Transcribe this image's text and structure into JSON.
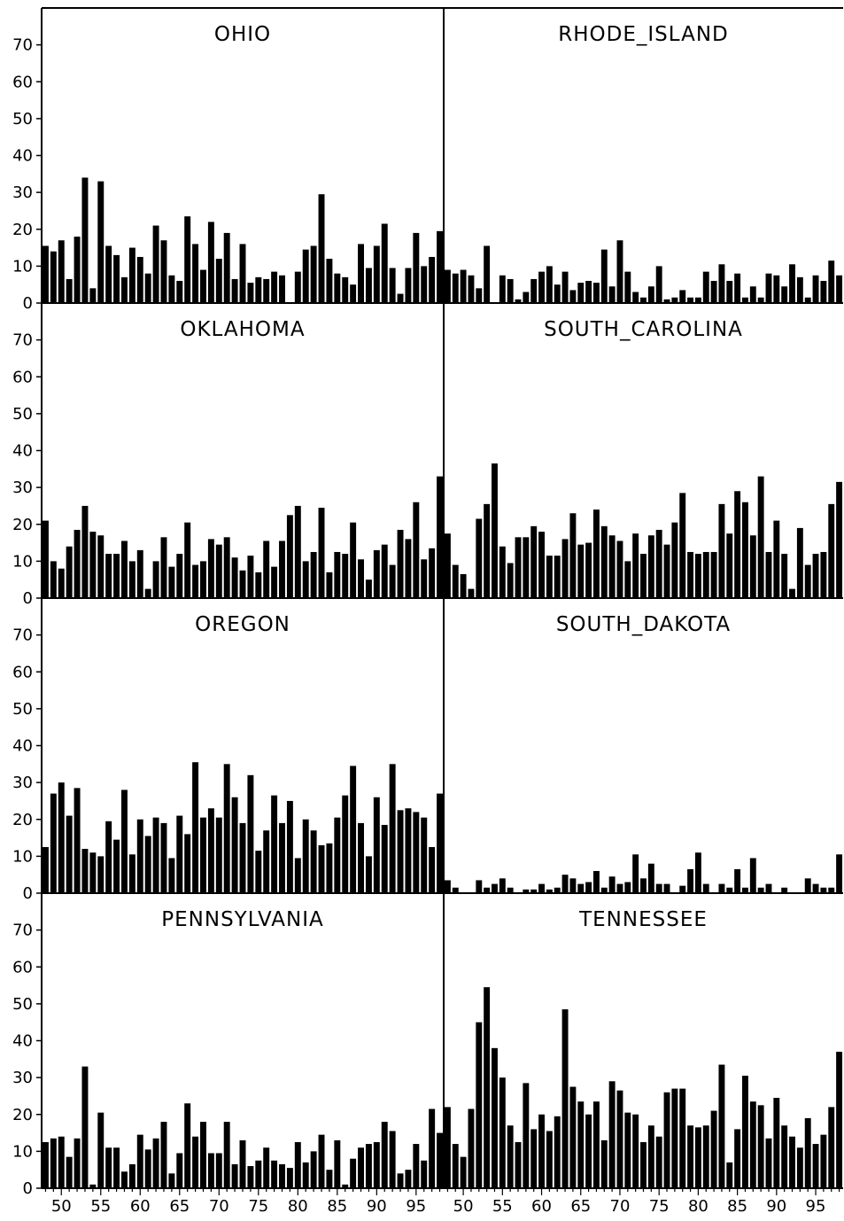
{
  "figure": {
    "layout": {
      "rows": 4,
      "columns": 2
    },
    "y_axis_tick_labels": [
      "0",
      "10",
      "20",
      "30",
      "40",
      "50",
      "60",
      "70"
    ],
    "x_axis_tick_labels": [
      "50",
      "55",
      "60",
      "65",
      "70",
      "75",
      "80",
      "85",
      "90",
      "95"
    ],
    "bar_color": "#000000"
  },
  "chart_data": [
    {
      "type": "bar",
      "title": "OHIO",
      "xlabel": "",
      "ylabel": "",
      "x": [
        1948,
        1949,
        1950,
        1951,
        1952,
        1953,
        1954,
        1955,
        1956,
        1957,
        1958,
        1959,
        1960,
        1961,
        1962,
        1963,
        1964,
        1965,
        1966,
        1967,
        1968,
        1969,
        1970,
        1971,
        1972,
        1973,
        1974,
        1975,
        1976,
        1977,
        1978,
        1979,
        1980,
        1981,
        1982,
        1983,
        1984,
        1985,
        1986,
        1987,
        1988,
        1989,
        1990,
        1991,
        1992,
        1993,
        1994,
        1995,
        1996,
        1997,
        1998
      ],
      "values": [
        15.5,
        14,
        17,
        6.5,
        18,
        34,
        4,
        33,
        15.5,
        13,
        7,
        15,
        12.5,
        8,
        21,
        17,
        7.5,
        6,
        23.5,
        16,
        9,
        22,
        12,
        19,
        6.5,
        16,
        5.5,
        7,
        6.5,
        8.5,
        7.5,
        0,
        8.5,
        14.5,
        15.5,
        29.5,
        12,
        8,
        7,
        5,
        16,
        9.5,
        15.5,
        21.5,
        9.5,
        2.5,
        9.5,
        19,
        10,
        12.5,
        19.5
      ],
      "ylim": [
        0,
        80
      ],
      "xlim": [
        1947.5,
        1998.5
      ]
    },
    {
      "type": "bar",
      "title": "RHODE_ISLAND",
      "xlabel": "",
      "ylabel": "",
      "x": [
        1948,
        1949,
        1950,
        1951,
        1952,
        1953,
        1954,
        1955,
        1956,
        1957,
        1958,
        1959,
        1960,
        1961,
        1962,
        1963,
        1964,
        1965,
        1966,
        1967,
        1968,
        1969,
        1970,
        1971,
        1972,
        1973,
        1974,
        1975,
        1976,
        1977,
        1978,
        1979,
        1980,
        1981,
        1982,
        1983,
        1984,
        1985,
        1986,
        1987,
        1988,
        1989,
        1990,
        1991,
        1992,
        1993,
        1994,
        1995,
        1996,
        1997,
        1998
      ],
      "values": [
        9,
        8,
        9,
        7.5,
        4,
        15.5,
        0,
        7.5,
        6.5,
        1,
        3,
        6.5,
        8.5,
        10,
        5,
        8.5,
        3.5,
        5.5,
        6,
        5.5,
        14.5,
        4.5,
        17,
        8.5,
        3,
        1.5,
        4.5,
        10,
        1,
        1.5,
        3.5,
        1.5,
        1.5,
        8.5,
        6,
        10.5,
        6,
        8,
        1.5,
        4.5,
        1.5,
        8,
        7.5,
        4.5,
        10.5,
        7,
        1.5,
        7.5,
        6,
        11.5,
        7.5
      ],
      "ylim": [
        0,
        80
      ],
      "xlim": [
        1947.5,
        1998.5
      ]
    },
    {
      "type": "bar",
      "title": "OKLAHOMA",
      "xlabel": "",
      "ylabel": "",
      "x": [
        1948,
        1949,
        1950,
        1951,
        1952,
        1953,
        1954,
        1955,
        1956,
        1957,
        1958,
        1959,
        1960,
        1961,
        1962,
        1963,
        1964,
        1965,
        1966,
        1967,
        1968,
        1969,
        1970,
        1971,
        1972,
        1973,
        1974,
        1975,
        1976,
        1977,
        1978,
        1979,
        1980,
        1981,
        1982,
        1983,
        1984,
        1985,
        1986,
        1987,
        1988,
        1989,
        1990,
        1991,
        1992,
        1993,
        1994,
        1995,
        1996,
        1997,
        1998
      ],
      "values": [
        21,
        10,
        8,
        14,
        18.5,
        25,
        18,
        17,
        12,
        12,
        15.5,
        10,
        13,
        2.5,
        10,
        16.5,
        8.5,
        12,
        20.5,
        9,
        10,
        16,
        14.5,
        16.5,
        11,
        7.5,
        11.5,
        7,
        15.5,
        8.5,
        15.5,
        22.5,
        25,
        10,
        12.5,
        24.5,
        7,
        12.5,
        12,
        20.5,
        10.5,
        5,
        13,
        14.5,
        9,
        18.5,
        16,
        26,
        10.5,
        13.5,
        33
      ],
      "ylim": [
        0,
        80
      ],
      "xlim": [
        1947.5,
        1998.5
      ]
    },
    {
      "type": "bar",
      "title": "SOUTH_CAROLINA",
      "xlabel": "",
      "ylabel": "",
      "x": [
        1948,
        1949,
        1950,
        1951,
        1952,
        1953,
        1954,
        1955,
        1956,
        1957,
        1958,
        1959,
        1960,
        1961,
        1962,
        1963,
        1964,
        1965,
        1966,
        1967,
        1968,
        1969,
        1970,
        1971,
        1972,
        1973,
        1974,
        1975,
        1976,
        1977,
        1978,
        1979,
        1980,
        1981,
        1982,
        1983,
        1984,
        1985,
        1986,
        1987,
        1988,
        1989,
        1990,
        1991,
        1992,
        1993,
        1994,
        1995,
        1996,
        1997,
        1998
      ],
      "values": [
        17.5,
        9,
        6.5,
        2.5,
        21.5,
        25.5,
        36.5,
        14,
        9.5,
        16.5,
        16.5,
        19.5,
        18,
        11.5,
        11.5,
        16,
        23,
        14.5,
        15,
        24,
        19.5,
        17,
        15.5,
        10,
        17.5,
        12,
        17,
        18.5,
        14.5,
        20.5,
        28.5,
        12.5,
        12,
        12.5,
        12.5,
        25.5,
        17.5,
        29,
        26,
        17,
        33,
        12.5,
        21,
        12,
        2.5,
        19,
        9,
        12,
        12.5,
        25.5,
        31.5
      ],
      "ylim": [
        0,
        80
      ],
      "xlim": [
        1947.5,
        1998.5
      ]
    },
    {
      "type": "bar",
      "title": "OREGON",
      "xlabel": "",
      "ylabel": "",
      "x": [
        1948,
        1949,
        1950,
        1951,
        1952,
        1953,
        1954,
        1955,
        1956,
        1957,
        1958,
        1959,
        1960,
        1961,
        1962,
        1963,
        1964,
        1965,
        1966,
        1967,
        1968,
        1969,
        1970,
        1971,
        1972,
        1973,
        1974,
        1975,
        1976,
        1977,
        1978,
        1979,
        1980,
        1981,
        1982,
        1983,
        1984,
        1985,
        1986,
        1987,
        1988,
        1989,
        1990,
        1991,
        1992,
        1993,
        1994,
        1995,
        1996,
        1997,
        1998
      ],
      "values": [
        12.5,
        27,
        30,
        21,
        28.5,
        12,
        11,
        10,
        19.5,
        14.5,
        28,
        10.5,
        20,
        15.5,
        20.5,
        19,
        9.5,
        21,
        16,
        35.5,
        20.5,
        23,
        20.5,
        35,
        26,
        19,
        32,
        11.5,
        17,
        26.5,
        19,
        25,
        9.5,
        20,
        17,
        13,
        13.5,
        20.5,
        26.5,
        34.5,
        19,
        10,
        26,
        18.5,
        35,
        22.5,
        23,
        22,
        20.5,
        12.5,
        27
      ],
      "ylim": [
        0,
        80
      ],
      "xlim": [
        1947.5,
        1998.5
      ]
    },
    {
      "type": "bar",
      "title": "SOUTH_DAKOTA",
      "xlabel": "",
      "ylabel": "",
      "x": [
        1948,
        1949,
        1950,
        1951,
        1952,
        1953,
        1954,
        1955,
        1956,
        1957,
        1958,
        1959,
        1960,
        1961,
        1962,
        1963,
        1964,
        1965,
        1966,
        1967,
        1968,
        1969,
        1970,
        1971,
        1972,
        1973,
        1974,
        1975,
        1976,
        1977,
        1978,
        1979,
        1980,
        1981,
        1982,
        1983,
        1984,
        1985,
        1986,
        1987,
        1988,
        1989,
        1990,
        1991,
        1992,
        1993,
        1994,
        1995,
        1996,
        1997,
        1998
      ],
      "values": [
        3.5,
        1.5,
        0,
        0,
        3.5,
        1.5,
        2.5,
        4,
        1.5,
        0,
        1,
        1,
        2.5,
        1,
        1.5,
        5,
        4,
        2.5,
        3,
        6,
        1.5,
        4.5,
        2.5,
        3,
        10.5,
        4,
        8,
        2.5,
        2.5,
        0,
        2,
        6.5,
        11,
        2.5,
        0,
        2.5,
        1.5,
        6.5,
        1.5,
        9.5,
        1.5,
        2.5,
        0,
        1.5,
        0,
        0,
        4,
        2.5,
        1.5,
        1.5,
        10.5
      ],
      "ylim": [
        0,
        80
      ],
      "xlim": [
        1947.5,
        1998.5
      ]
    },
    {
      "type": "bar",
      "title": "PENNSYLVANIA",
      "xlabel": "",
      "ylabel": "",
      "x": [
        1948,
        1949,
        1950,
        1951,
        1952,
        1953,
        1954,
        1955,
        1956,
        1957,
        1958,
        1959,
        1960,
        1961,
        1962,
        1963,
        1964,
        1965,
        1966,
        1967,
        1968,
        1969,
        1970,
        1971,
        1972,
        1973,
        1974,
        1975,
        1976,
        1977,
        1978,
        1979,
        1980,
        1981,
        1982,
        1983,
        1984,
        1985,
        1986,
        1987,
        1988,
        1989,
        1990,
        1991,
        1992,
        1993,
        1994,
        1995,
        1996,
        1997,
        1998
      ],
      "values": [
        12.5,
        13.5,
        14,
        8.5,
        13.5,
        33,
        1,
        20.5,
        11,
        11,
        4.5,
        6.5,
        14.5,
        10.5,
        13.5,
        18,
        4,
        9.5,
        23,
        14,
        18,
        9.5,
        9.5,
        18,
        6.5,
        13,
        6,
        7.5,
        11,
        7.5,
        6.5,
        5.5,
        12.5,
        7,
        10,
        14.5,
        5,
        13,
        1,
        8,
        11,
        12,
        12.5,
        18,
        15.5,
        4,
        5,
        12,
        7.5,
        21.5,
        15
      ],
      "ylim": [
        0,
        80
      ],
      "xlim": [
        1947.5,
        1998.5
      ]
    },
    {
      "type": "bar",
      "title": "TENNESSEE",
      "xlabel": "",
      "ylabel": "",
      "x": [
        1948,
        1949,
        1950,
        1951,
        1952,
        1953,
        1954,
        1955,
        1956,
        1957,
        1958,
        1959,
        1960,
        1961,
        1962,
        1963,
        1964,
        1965,
        1966,
        1967,
        1968,
        1969,
        1970,
        1971,
        1972,
        1973,
        1974,
        1975,
        1976,
        1977,
        1978,
        1979,
        1980,
        1981,
        1982,
        1983,
        1984,
        1985,
        1986,
        1987,
        1988,
        1989,
        1990,
        1991,
        1992,
        1993,
        1994,
        1995,
        1996,
        1997,
        1998
      ],
      "values": [
        22,
        12,
        8.5,
        21.5,
        45,
        54.5,
        38,
        30,
        17,
        12.5,
        28.5,
        16,
        20,
        15.5,
        19.5,
        48.5,
        27.5,
        23.5,
        20,
        23.5,
        13,
        29,
        26.5,
        20.5,
        20,
        12.5,
        17,
        14,
        26,
        27,
        27,
        17,
        16.5,
        17,
        21,
        33.5,
        7,
        16,
        30.5,
        23.5,
        22.5,
        13.5,
        24.5,
        17,
        14,
        11,
        19,
        12,
        14.5,
        22,
        37
      ],
      "ylim": [
        0,
        80
      ],
      "xlim": [
        1947.5,
        1998.5
      ]
    }
  ]
}
